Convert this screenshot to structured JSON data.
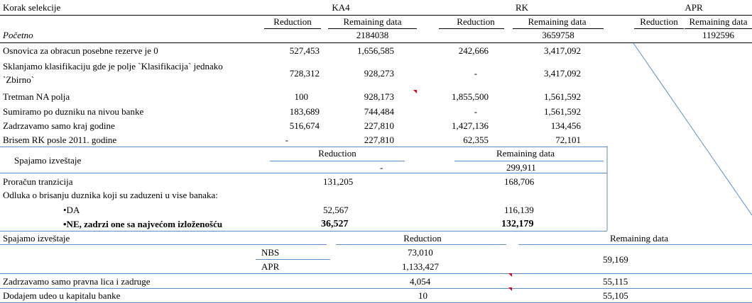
{
  "header": {
    "korak": "Korak selekcije",
    "ka4": "KA4",
    "rk": "RK",
    "apr": "APR"
  },
  "colheads": {
    "reduction": "Reduction",
    "remaining": "Remaining data"
  },
  "pocetno": {
    "label": "Početno",
    "ka4_rem": "2184038",
    "rk_rem": "3659758",
    "apr_rem": "1192596"
  },
  "section1": [
    {
      "label": "Osnovica za obracun posebne rezerve je 0",
      "ka4_red": "527,453",
      "ka4_rem": "1,656,585",
      "rk_red": "242,666",
      "rk_rem": "3,417,092"
    },
    {
      "label": "Sklanjamo klasifikaciju gde je polje `Klasifikacija` jednako",
      "label2": "`Zbirno`",
      "ka4_red": "728,312",
      "ka4_rem": "928,273",
      "rk_red": "-",
      "rk_rem": "3,417,092"
    },
    {
      "label": "Tretman NA polja",
      "ka4_red": "100",
      "ka4_rem": "928,173",
      "rk_red": "1,855,500",
      "rk_rem": "1,561,592"
    },
    {
      "label": "Sumiramo po duzniku na nivou banke",
      "ka4_red": "183,689",
      "ka4_rem": "744,484",
      "rk_red": "-",
      "rk_rem": "1,561,592"
    },
    {
      "label": "Zadrzavamo samo kraj godine",
      "ka4_red": "516,674",
      "ka4_rem": "227,810",
      "rk_red": "1,427,136",
      "rk_rem": "134,456"
    },
    {
      "label": "Brisem RK posle 2011. godine",
      "ka4_red": "-",
      "ka4_rem": "227,810",
      "rk_red": "62,355",
      "rk_rem": "72,101"
    }
  ],
  "merge1": {
    "label": "Spajamo izveštaje",
    "red_head": "Reduction",
    "rem_head": "Remaining data",
    "red_val": "-",
    "rem_val": "299,911",
    "proracun": {
      "label": "Proračun tranzicija",
      "red": "131,205",
      "rem": "168,706"
    },
    "odluka": "Odluka o brisanju duznika koji su zaduzeni u vise banaka:",
    "da": {
      "label": "•DA",
      "red": "52,567",
      "rem": "116,139"
    },
    "ne": {
      "label": "•NE, zadrzi one sa najvećom izloženošću",
      "red": "36,527",
      "rem": "132,179"
    }
  },
  "merge2": {
    "label": "Spajamo izveštaje",
    "red_head": "Reduction",
    "rem_head": "Remaining data",
    "nbs": {
      "label": "NBS",
      "red": "73,010"
    },
    "apr": {
      "label": "APR",
      "red": "1,133,427"
    },
    "combined_rem": "59,169",
    "rows": [
      {
        "label": "Zadrzavamo samo pravna lica i zadruge",
        "red": "4,054",
        "rem": "55,115"
      },
      {
        "label": "Dodajem udeo u kapitalu banke",
        "red": "10",
        "rem": "55,105"
      }
    ]
  }
}
